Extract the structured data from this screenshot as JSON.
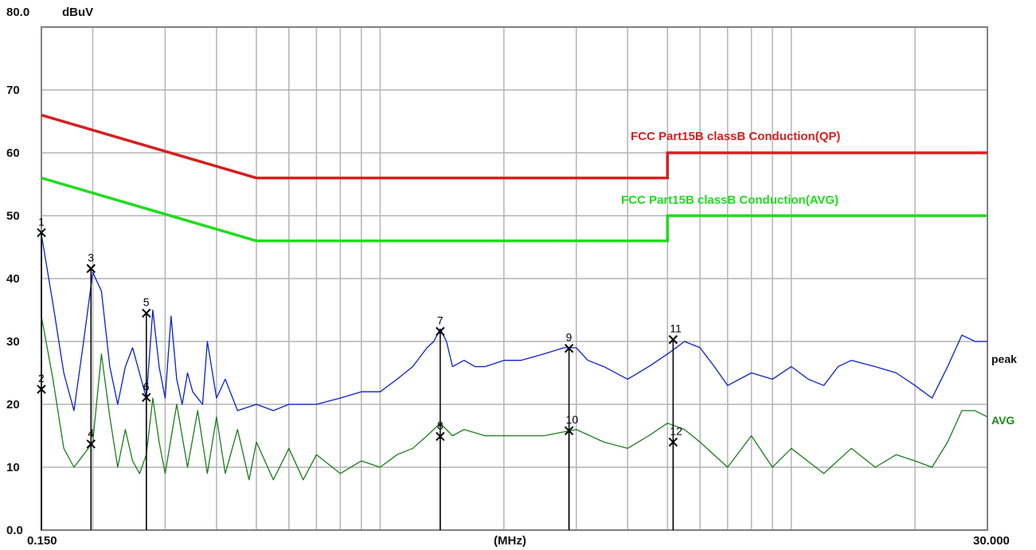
{
  "chart_data": {
    "type": "line",
    "y_unit": "dBuV",
    "x_unit": "(MHz)",
    "xlim": [
      0.15,
      30.0
    ],
    "x_scale": "log",
    "ylim": [
      0,
      80
    ],
    "y_ticks": [
      "0.0",
      "10",
      "20",
      "30",
      "40",
      "50",
      "60",
      "70",
      "80.0"
    ],
    "x_tick_labels": {
      "left": "0.150",
      "right": "30.000"
    },
    "grid": true,
    "limits": [
      {
        "name": "FCC  Part15B classB Conduction(QP)",
        "color": "#d42020",
        "points": [
          [
            0.15,
            66
          ],
          [
            0.5,
            56
          ],
          [
            5.0,
            56
          ],
          [
            5.0,
            60
          ],
          [
            30.0,
            60
          ]
        ]
      },
      {
        "name": "FCC  Part15B classB Conduction(AVG)",
        "color": "#1fdc1f",
        "points": [
          [
            0.15,
            56
          ],
          [
            0.5,
            46
          ],
          [
            5.0,
            46
          ],
          [
            5.0,
            50
          ],
          [
            30.0,
            50
          ]
        ]
      }
    ],
    "series": [
      {
        "name": "peak",
        "color": "#0b1fd0",
        "points": [
          [
            0.15,
            47
          ],
          [
            0.16,
            36
          ],
          [
            0.17,
            25
          ],
          [
            0.18,
            19
          ],
          [
            0.19,
            30
          ],
          [
            0.2,
            41
          ],
          [
            0.21,
            38
          ],
          [
            0.22,
            26
          ],
          [
            0.23,
            20
          ],
          [
            0.24,
            26
          ],
          [
            0.25,
            29
          ],
          [
            0.27,
            21
          ],
          [
            0.28,
            35
          ],
          [
            0.29,
            26
          ],
          [
            0.3,
            21
          ],
          [
            0.31,
            34
          ],
          [
            0.32,
            24
          ],
          [
            0.33,
            20
          ],
          [
            0.34,
            25
          ],
          [
            0.35,
            22
          ],
          [
            0.37,
            20
          ],
          [
            0.38,
            30
          ],
          [
            0.4,
            21
          ],
          [
            0.42,
            24
          ],
          [
            0.45,
            19
          ],
          [
            0.5,
            20
          ],
          [
            0.55,
            19
          ],
          [
            0.6,
            20
          ],
          [
            0.7,
            20
          ],
          [
            0.8,
            21
          ],
          [
            0.9,
            22
          ],
          [
            1.0,
            22
          ],
          [
            1.1,
            24
          ],
          [
            1.2,
            26
          ],
          [
            1.3,
            29
          ],
          [
            1.35,
            30
          ],
          [
            1.4,
            32
          ],
          [
            1.45,
            30
          ],
          [
            1.5,
            26
          ],
          [
            1.6,
            27
          ],
          [
            1.7,
            26
          ],
          [
            1.8,
            26
          ],
          [
            2.0,
            27
          ],
          [
            2.2,
            27
          ],
          [
            2.5,
            28
          ],
          [
            2.8,
            29
          ],
          [
            3.0,
            29
          ],
          [
            3.2,
            27
          ],
          [
            3.5,
            26
          ],
          [
            4.0,
            24
          ],
          [
            4.5,
            26
          ],
          [
            5.0,
            28
          ],
          [
            5.5,
            30
          ],
          [
            6.0,
            29
          ],
          [
            6.5,
            26
          ],
          [
            7.0,
            23
          ],
          [
            8.0,
            25
          ],
          [
            9.0,
            24
          ],
          [
            10.0,
            26
          ],
          [
            11.0,
            24
          ],
          [
            12.0,
            23
          ],
          [
            13.0,
            26
          ],
          [
            14.0,
            27
          ],
          [
            16.0,
            26
          ],
          [
            18.0,
            25
          ],
          [
            20.0,
            23
          ],
          [
            22.0,
            21
          ],
          [
            24.0,
            26
          ],
          [
            26.0,
            31
          ],
          [
            28.0,
            30
          ],
          [
            30.0,
            30
          ]
        ]
      },
      {
        "name": "AVG",
        "color": "#1a7d1a",
        "points": [
          [
            0.15,
            34
          ],
          [
            0.16,
            24
          ],
          [
            0.17,
            13
          ],
          [
            0.18,
            10
          ],
          [
            0.19,
            12
          ],
          [
            0.2,
            14
          ],
          [
            0.21,
            28
          ],
          [
            0.22,
            18
          ],
          [
            0.23,
            10
          ],
          [
            0.24,
            16
          ],
          [
            0.25,
            11
          ],
          [
            0.26,
            9
          ],
          [
            0.27,
            12
          ],
          [
            0.28,
            21
          ],
          [
            0.29,
            14
          ],
          [
            0.3,
            9
          ],
          [
            0.32,
            20
          ],
          [
            0.34,
            10
          ],
          [
            0.36,
            19
          ],
          [
            0.38,
            9
          ],
          [
            0.4,
            18
          ],
          [
            0.42,
            9
          ],
          [
            0.45,
            16
          ],
          [
            0.48,
            8
          ],
          [
            0.5,
            14
          ],
          [
            0.55,
            8
          ],
          [
            0.6,
            13
          ],
          [
            0.65,
            8
          ],
          [
            0.7,
            12
          ],
          [
            0.8,
            9
          ],
          [
            0.9,
            11
          ],
          [
            1.0,
            10
          ],
          [
            1.1,
            12
          ],
          [
            1.2,
            13
          ],
          [
            1.3,
            15
          ],
          [
            1.4,
            17
          ],
          [
            1.5,
            15
          ],
          [
            1.6,
            16
          ],
          [
            1.8,
            15
          ],
          [
            2.0,
            15
          ],
          [
            2.5,
            15
          ],
          [
            3.0,
            16
          ],
          [
            3.5,
            14
          ],
          [
            4.0,
            13
          ],
          [
            4.5,
            15
          ],
          [
            5.0,
            17
          ],
          [
            5.5,
            16
          ],
          [
            6.0,
            14
          ],
          [
            7.0,
            10
          ],
          [
            8.0,
            15
          ],
          [
            9.0,
            10
          ],
          [
            10.0,
            13
          ],
          [
            12.0,
            9
          ],
          [
            14.0,
            13
          ],
          [
            16.0,
            10
          ],
          [
            18.0,
            12
          ],
          [
            20.0,
            11
          ],
          [
            22.0,
            10
          ],
          [
            24.0,
            14
          ],
          [
            26.0,
            19
          ],
          [
            28.0,
            19
          ],
          [
            30.0,
            18
          ]
        ]
      }
    ],
    "markers": [
      {
        "id": "1",
        "x": 0.15,
        "y": 47.3
      },
      {
        "id": "2",
        "x": 0.15,
        "y": 22.4
      },
      {
        "id": "3",
        "x": 0.198,
        "y": 41.6
      },
      {
        "id": "4",
        "x": 0.198,
        "y": 13.7
      },
      {
        "id": "5",
        "x": 0.27,
        "y": 34.5
      },
      {
        "id": "6",
        "x": 0.27,
        "y": 21.1
      },
      {
        "id": "7",
        "x": 1.4,
        "y": 31.6
      },
      {
        "id": "8",
        "x": 1.4,
        "y": 14.9
      },
      {
        "id": "9",
        "x": 2.88,
        "y": 28.9
      },
      {
        "id": "10",
        "x": 2.88,
        "y": 15.8
      },
      {
        "id": "11",
        "x": 5.16,
        "y": 30.3
      },
      {
        "id": "12",
        "x": 5.16,
        "y": 14.0
      }
    ]
  }
}
